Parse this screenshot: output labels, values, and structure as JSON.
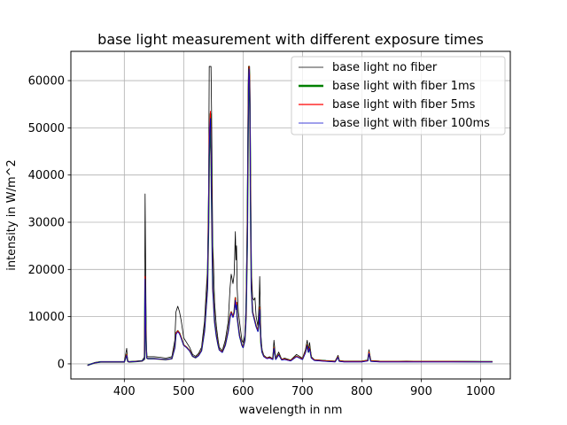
{
  "chart_data": {
    "type": "line",
    "title": "base light measurement with different exposure times",
    "xlabel": "wavelength in nm",
    "ylabel": "intensity in W/m^2",
    "xlim": [
      310,
      1050
    ],
    "ylim": [
      -3200,
      66200
    ],
    "xticks": [
      400,
      500,
      600,
      700,
      800,
      900,
      1000
    ],
    "yticks": [
      0,
      10000,
      20000,
      30000,
      40000,
      50000,
      60000
    ],
    "grid": true,
    "legend_position": "top-right",
    "series": [
      {
        "name": "base light no fiber",
        "color": "#000000",
        "x": [
          338,
          345,
          350,
          360,
          380,
          400,
          404,
          405,
          406,
          408,
          420,
          430,
          434,
          435,
          436,
          437,
          438,
          440,
          450,
          460,
          470,
          480,
          485,
          487,
          490,
          493,
          496,
          500,
          505,
          510,
          515,
          520,
          525,
          530,
          535,
          540,
          542,
          543,
          544,
          545,
          546,
          547,
          548,
          549,
          550,
          552,
          555,
          558,
          560,
          565,
          570,
          575,
          578,
          580,
          583,
          585,
          587,
          588,
          589,
          590,
          592,
          594,
          596,
          598,
          600,
          603,
          605,
          607,
          608,
          609,
          610,
          611,
          612,
          613,
          614,
          616,
          618,
          620,
          622,
          625,
          627,
          628,
          629,
          630,
          632,
          635,
          640,
          645,
          650,
          652,
          655,
          660,
          665,
          670,
          680,
          690,
          700,
          705,
          708,
          710,
          712,
          715,
          720,
          740,
          755,
          760,
          762,
          770,
          800,
          810,
          812,
          815,
          830,
          850,
          875,
          900,
          950,
          1000,
          1020
        ],
        "y": [
          -400,
          0,
          300,
          500,
          500,
          500,
          3300,
          1500,
          600,
          500,
          600,
          700,
          1500,
          36000,
          20000,
          5000,
          1600,
          1500,
          1500,
          1400,
          1200,
          1500,
          5000,
          11000,
          12200,
          11000,
          9000,
          5500,
          4500,
          3500,
          2000,
          1600,
          2200,
          3500,
          9000,
          20000,
          38000,
          63000,
          63000,
          63000,
          63000,
          53000,
          38000,
          25000,
          22000,
          13000,
          8000,
          5000,
          3500,
          2800,
          5000,
          9000,
          16000,
          19000,
          17000,
          19000,
          28000,
          22000,
          25000,
          16000,
          11000,
          9000,
          7000,
          5000,
          4500,
          6000,
          13000,
          32000,
          50000,
          63000,
          63000,
          63000,
          55000,
          35000,
          20000,
          14000,
          13500,
          14000,
          10000,
          8000,
          13000,
          18500,
          12000,
          6000,
          3000,
          1800,
          1300,
          1500,
          1100,
          5000,
          1200,
          2500,
          1000,
          1200,
          800,
          2000,
          1200,
          3000,
          5000,
          3000,
          4500,
          1500,
          900,
          700,
          600,
          1800,
          700,
          600,
          600,
          800,
          3000,
          700,
          600,
          550,
          600,
          550,
          550,
          500,
          500
        ]
      },
      {
        "name": "base light with fiber 1ms",
        "color": "#008000",
        "x": [
          338,
          345,
          350,
          360,
          380,
          400,
          404,
          405,
          406,
          408,
          420,
          430,
          434,
          435,
          436,
          437,
          438,
          440,
          450,
          460,
          470,
          480,
          485,
          487,
          490,
          493,
          496,
          500,
          505,
          510,
          515,
          520,
          525,
          530,
          535,
          540,
          542,
          543,
          544,
          545,
          546,
          547,
          548,
          549,
          550,
          552,
          555,
          558,
          560,
          565,
          570,
          575,
          578,
          580,
          583,
          585,
          587,
          588,
          589,
          590,
          592,
          594,
          596,
          598,
          600,
          603,
          605,
          607,
          608,
          609,
          610,
          611,
          612,
          613,
          614,
          616,
          618,
          620,
          622,
          625,
          627,
          628,
          629,
          630,
          632,
          635,
          640,
          645,
          650,
          652,
          655,
          660,
          665,
          670,
          680,
          690,
          700,
          705,
          708,
          710,
          712,
          715,
          720,
          740,
          755,
          760,
          762,
          770,
          800,
          810,
          812,
          815,
          830,
          850,
          875,
          900,
          950,
          1000,
          1020
        ],
        "y": [
          -300,
          0,
          200,
          400,
          400,
          400,
          2000,
          1000,
          500,
          400,
          500,
          600,
          1000,
          18000,
          10000,
          3000,
          1200,
          1100,
          1100,
          1000,
          900,
          1100,
          3500,
          6500,
          7000,
          6500,
          5500,
          4000,
          3500,
          2800,
          1600,
          1300,
          1800,
          2800,
          7000,
          16000,
          30000,
          44000,
          48000,
          53000,
          45000,
          35000,
          25000,
          16000,
          14000,
          9000,
          6000,
          4000,
          3000,
          2500,
          4000,
          7000,
          10000,
          11000,
          10000,
          11000,
          14000,
          12000,
          13000,
          10000,
          8000,
          6000,
          5000,
          4000,
          3500,
          5000,
          10000,
          25000,
          40000,
          58000,
          63000,
          60000,
          45000,
          28000,
          16000,
          11000,
          10000,
          9000,
          8000,
          7000,
          9000,
          12000,
          8000,
          4500,
          2500,
          1600,
          1200,
          1300,
          1000,
          3500,
          1000,
          2000,
          900,
          1000,
          700,
          1600,
          1000,
          2500,
          4000,
          2500,
          3500,
          1300,
          800,
          600,
          500,
          1500,
          600,
          500,
          500,
          700,
          2500,
          600,
          500,
          500,
          500,
          500,
          500,
          450,
          450
        ]
      },
      {
        "name": "base light with fiber 5ms",
        "color": "#ff0000",
        "x": [
          338,
          345,
          350,
          360,
          380,
          400,
          404,
          405,
          406,
          408,
          420,
          430,
          434,
          435,
          436,
          437,
          438,
          440,
          450,
          460,
          470,
          480,
          485,
          487,
          490,
          493,
          496,
          500,
          505,
          510,
          515,
          520,
          525,
          530,
          535,
          540,
          542,
          543,
          544,
          545,
          546,
          547,
          548,
          549,
          550,
          552,
          555,
          558,
          560,
          565,
          570,
          575,
          578,
          580,
          583,
          585,
          587,
          588,
          589,
          590,
          592,
          594,
          596,
          598,
          600,
          603,
          605,
          607,
          608,
          609,
          610,
          611,
          612,
          613,
          614,
          616,
          618,
          620,
          622,
          625,
          627,
          628,
          629,
          630,
          632,
          635,
          640,
          645,
          650,
          652,
          655,
          660,
          665,
          670,
          680,
          690,
          700,
          705,
          708,
          710,
          712,
          715,
          720,
          740,
          755,
          760,
          762,
          770,
          800,
          810,
          812,
          815,
          830,
          850,
          875,
          900,
          950,
          1000,
          1020
        ],
        "y": [
          -300,
          0,
          200,
          400,
          400,
          400,
          2000,
          1000,
          500,
          400,
          500,
          600,
          1000,
          18500,
          10000,
          3000,
          1200,
          1100,
          1100,
          1000,
          900,
          1100,
          3500,
          6500,
          7000,
          6500,
          5500,
          4000,
          3500,
          2800,
          1600,
          1300,
          1800,
          2800,
          7000,
          16000,
          32000,
          48000,
          51000,
          53500,
          46000,
          36000,
          25000,
          16000,
          14000,
          9000,
          6000,
          4000,
          3000,
          2500,
          4000,
          7000,
          10000,
          11000,
          10000,
          11000,
          14000,
          12000,
          13000,
          10000,
          8000,
          6000,
          5000,
          4000,
          3500,
          5000,
          10000,
          25000,
          42000,
          59000,
          63000,
          61000,
          46000,
          28000,
          16000,
          11000,
          10000,
          9000,
          8000,
          7000,
          9000,
          12000,
          8000,
          4500,
          2500,
          1600,
          1200,
          1300,
          1000,
          3500,
          1000,
          2000,
          900,
          1000,
          700,
          1600,
          1000,
          2500,
          4000,
          2500,
          3500,
          1300,
          800,
          600,
          500,
          1500,
          600,
          500,
          500,
          700,
          2500,
          600,
          500,
          500,
          500,
          500,
          500,
          450,
          450
        ]
      },
      {
        "name": "base light with fiber 100ms",
        "color": "#0000cc",
        "x": [
          338,
          345,
          350,
          360,
          380,
          400,
          404,
          405,
          406,
          408,
          420,
          430,
          434,
          435,
          436,
          437,
          438,
          440,
          450,
          460,
          470,
          480,
          485,
          487,
          490,
          493,
          496,
          500,
          505,
          510,
          515,
          520,
          525,
          530,
          535,
          540,
          542,
          543,
          544,
          545,
          546,
          547,
          548,
          549,
          550,
          552,
          555,
          558,
          560,
          565,
          570,
          575,
          578,
          580,
          583,
          585,
          587,
          588,
          589,
          590,
          592,
          594,
          596,
          598,
          600,
          603,
          605,
          607,
          608,
          609,
          610,
          611,
          612,
          613,
          614,
          616,
          618,
          620,
          622,
          625,
          627,
          628,
          629,
          630,
          632,
          635,
          640,
          645,
          650,
          652,
          655,
          660,
          665,
          670,
          680,
          690,
          700,
          705,
          708,
          710,
          712,
          715,
          720,
          740,
          755,
          760,
          762,
          770,
          800,
          810,
          812,
          815,
          830,
          850,
          875,
          900,
          950,
          1000,
          1020
        ],
        "y": [
          -300,
          0,
          200,
          400,
          400,
          400,
          1800,
          900,
          500,
          400,
          500,
          600,
          1000,
          18000,
          9500,
          2800,
          1200,
          1100,
          1100,
          1000,
          900,
          1100,
          3300,
          6200,
          6800,
          6300,
          5300,
          3900,
          3400,
          2700,
          1600,
          1300,
          1700,
          2700,
          6800,
          15500,
          31000,
          46000,
          50000,
          52000,
          45000,
          35000,
          24000,
          15500,
          13500,
          8800,
          5800,
          3900,
          2900,
          2400,
          3900,
          6800,
          9700,
          10800,
          9800,
          10700,
          13500,
          11500,
          12500,
          9800,
          7800,
          5800,
          4900,
          3900,
          3400,
          4900,
          9800,
          24000,
          41000,
          58000,
          62500,
          60000,
          45000,
          27000,
          15500,
          10800,
          9800,
          8800,
          7800,
          6800,
          8800,
          11500,
          7800,
          4400,
          2400,
          1500,
          1100,
          1200,
          900,
          3300,
          900,
          1900,
          800,
          900,
          600,
          1500,
          900,
          2300,
          3800,
          2400,
          3300,
          1200,
          700,
          500,
          400,
          1400,
          500,
          400,
          400,
          600,
          2200,
          500,
          400,
          400,
          400,
          400,
          400,
          400,
          400
        ]
      }
    ]
  }
}
